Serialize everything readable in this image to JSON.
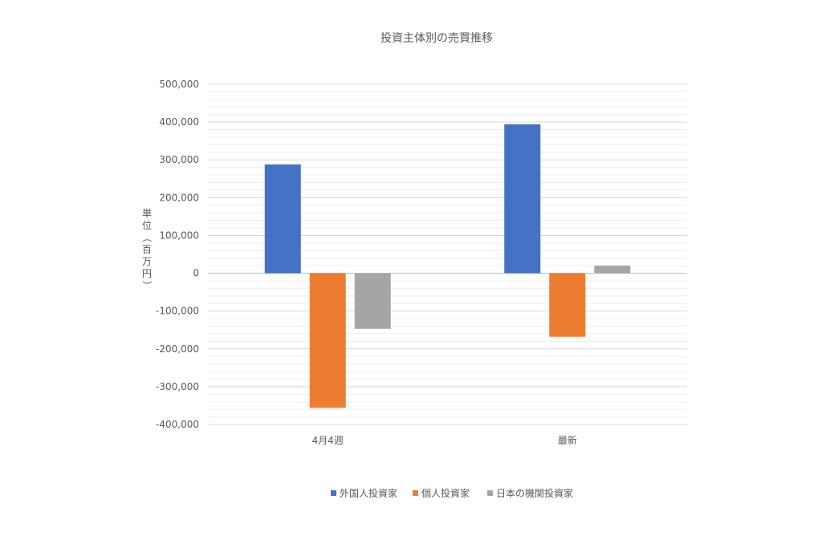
{
  "chart_data": {
    "type": "bar",
    "title": "投資主体別の売買推移",
    "ylabel": "単位（百万円）",
    "xlabel": "",
    "categories": [
      "4月4週",
      "最新"
    ],
    "series": [
      {
        "name": "外国人投資家",
        "color": "#4472C4",
        "values": [
          288000,
          394000
        ]
      },
      {
        "name": "個人投資家",
        "color": "#ED7D31",
        "values": [
          -356000,
          -168000
        ]
      },
      {
        "name": "日本の機関投資家",
        "color": "#A5A5A5",
        "values": [
          -147000,
          20000
        ]
      }
    ],
    "ylim": [
      -400000,
      500000
    ],
    "y_tick_step": 100000,
    "y_tick_labels": [
      "-400,000",
      "-300,000",
      "-200,000",
      "-100,000",
      "0",
      "100,000",
      "200,000",
      "300,000",
      "400,000",
      "500,000"
    ],
    "grid": true,
    "legend_position": "bottom"
  }
}
